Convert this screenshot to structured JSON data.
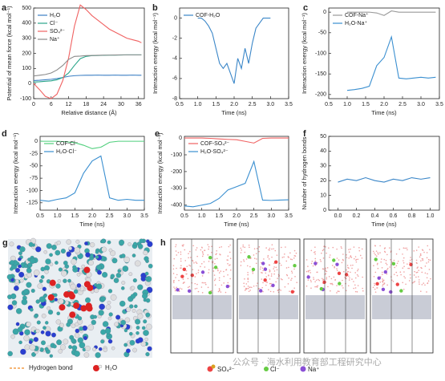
{
  "chart_data": [
    {
      "type": "line",
      "panel": "a",
      "xlabel": "Relative distance (Å)",
      "ylabel": "Potential of mean force (kcal mol⁻¹)",
      "x": [
        0,
        2,
        4,
        6,
        8,
        10,
        12,
        14,
        16,
        18,
        20,
        22,
        24,
        26,
        28,
        30,
        32,
        34,
        36,
        37
      ],
      "xlim": [
        0,
        38
      ],
      "xticks": [
        0,
        6,
        12,
        18,
        24,
        30,
        36
      ],
      "ylim": [
        -100,
        500
      ],
      "yticks": [
        -100,
        0,
        100,
        200,
        300,
        400,
        500
      ],
      "legend": "upper left",
      "series": [
        {
          "name": "H₂O",
          "color": "#3b7fc4",
          "values": [
            20,
            22,
            25,
            28,
            33,
            40,
            48,
            52,
            54,
            55,
            55,
            56,
            55,
            55,
            56,
            55,
            55,
            56,
            55,
            55
          ]
        },
        {
          "name": "Cl⁻",
          "color": "#2aa58a",
          "values": [
            10,
            12,
            15,
            18,
            25,
            40,
            70,
            120,
            165,
            180,
            185,
            186,
            187,
            188,
            188,
            189,
            190,
            190,
            190,
            190
          ]
        },
        {
          "name": "SO₄²⁻",
          "color": "#f06262",
          "values": [
            0,
            -40,
            -85,
            -100,
            -70,
            20,
            170,
            380,
            520,
            490,
            450,
            420,
            390,
            360,
            340,
            320,
            300,
            290,
            280,
            270
          ]
        },
        {
          "name": "Na⁺",
          "color": "#8a8a8a",
          "values": [
            50,
            55,
            60,
            70,
            90,
            120,
            160,
            180,
            182,
            185,
            186,
            187,
            188,
            188,
            189,
            190,
            190,
            190,
            190,
            190
          ]
        }
      ]
    },
    {
      "type": "line",
      "panel": "b",
      "xlabel": "Time (ns)",
      "ylabel": "Interaction energy (kcal mol⁻¹)",
      "x": [
        1.0,
        1.1,
        1.2,
        1.3,
        1.4,
        1.5,
        1.6,
        1.7,
        1.8,
        1.9,
        2.0,
        2.1,
        2.2,
        2.3,
        2.4,
        2.5,
        2.6,
        2.7,
        2.8,
        2.9,
        3.0
      ],
      "xlim": [
        0.5,
        3.5
      ],
      "xticks": [
        0.5,
        {
          "value": 1,
          "label": "1.0"
        },
        1.5,
        {
          "value": 2,
          "label": "2.0"
        },
        2.5,
        {
          "value": 3,
          "label": "3.0"
        },
        3.5
      ],
      "ylim": [
        -8,
        1
      ],
      "yticks": [
        0,
        -2,
        -4,
        -6,
        -8
      ],
      "legend": "upper left",
      "series": [
        {
          "name": "COF-H₂O",
          "color": "#3a86c8",
          "values": [
            0,
            0,
            -0.3,
            -0.8,
            -1.5,
            -3,
            -4.5,
            -5,
            -4.5,
            -5.5,
            -6.5,
            -4,
            -5,
            -3,
            -4.5,
            -2.5,
            -1,
            -0.5,
            0,
            0,
            0
          ]
        }
      ]
    },
    {
      "type": "line",
      "panel": "c",
      "xlabel": "Time (ns)",
      "ylabel": "Interaction energy (kcal mol⁻¹)",
      "x": [
        1.0,
        1.2,
        1.4,
        1.6,
        1.8,
        2.0,
        2.2,
        2.4,
        2.6,
        2.8,
        3.0,
        3.2,
        3.4
      ],
      "xlim": [
        0.5,
        3.5
      ],
      "xticks": [
        0.5,
        {
          "value": 1,
          "label": "1.0"
        },
        1.5,
        {
          "value": 2,
          "label": "2.0"
        },
        2.5,
        {
          "value": 3,
          "label": "3.0"
        },
        3.5
      ],
      "ylim": [
        -210,
        10
      ],
      "yticks": [
        0,
        -50,
        -100,
        -150,
        -200
      ],
      "legend": "upper left",
      "series": [
        {
          "name": "COF-Na⁺",
          "color": "#9a9a9a",
          "values": [
            0,
            0,
            0,
            0,
            -2,
            -8,
            3,
            0,
            0,
            0,
            0,
            0,
            0
          ]
        },
        {
          "name": "H₂O-Na⁺",
          "color": "#3a8fd0",
          "values": [
            -190,
            -188,
            -185,
            -180,
            -130,
            -110,
            -60,
            -160,
            -162,
            -160,
            -158,
            -160,
            -158
          ]
        }
      ]
    },
    {
      "type": "line",
      "panel": "d",
      "xlabel": "Time (ns)",
      "ylabel": "Interaction energy (kcal mol⁻¹)",
      "x": [
        0.5,
        0.75,
        1,
        1.25,
        1.5,
        1.75,
        2,
        2.25,
        2.5,
        2.75,
        3,
        3.25,
        3.5
      ],
      "xlim": [
        0.5,
        3.5
      ],
      "xticks": [
        0.5,
        {
          "value": 1,
          "label": "1.0"
        },
        1.5,
        {
          "value": 2,
          "label": "2.0"
        },
        2.5,
        {
          "value": 3,
          "label": "3.0"
        },
        3.5
      ],
      "ylim": [
        -140,
        10
      ],
      "yticks": [
        0,
        -25,
        -50,
        -75,
        -100,
        -125
      ],
      "legend": "upper left",
      "series": [
        {
          "name": "COF-Cl⁻",
          "color": "#4fcf7c",
          "values": [
            0,
            0,
            0,
            -1,
            -3,
            -8,
            -15,
            -12,
            -2,
            0,
            0,
            0,
            0
          ]
        },
        {
          "name": "H₂O-Cl⁻",
          "color": "#3a8fd0",
          "values": [
            -120,
            -122,
            -118,
            -115,
            -105,
            -65,
            -40,
            -30,
            -115,
            -120,
            -118,
            -120,
            -120
          ]
        }
      ]
    },
    {
      "type": "line",
      "panel": "e",
      "xlabel": "Time (ns)",
      "ylabel": "Interaction energy (kcal mol⁻¹)",
      "x": [
        0.5,
        0.75,
        1,
        1.25,
        1.5,
        1.75,
        2,
        2.25,
        2.5,
        2.75,
        3,
        3.25,
        3.5
      ],
      "xlim": [
        0.5,
        3.5
      ],
      "xticks": [
        0.5,
        {
          "value": 1,
          "label": "1.0"
        },
        1.5,
        {
          "value": 2,
          "label": "2.0"
        },
        2.5,
        {
          "value": 3,
          "label": "3.0"
        },
        3.5
      ],
      "ylim": [
        -430,
        10
      ],
      "yticks": [
        0,
        -100,
        -200,
        -300,
        -400
      ],
      "legend": "upper left",
      "series": [
        {
          "name": "COF-SO₄²⁻",
          "color": "#f06262",
          "values": [
            0,
            0,
            0,
            -2,
            -5,
            -8,
            -10,
            -20,
            -30,
            -2,
            0,
            0,
            0
          ]
        },
        {
          "name": "H₂O-SO₄²⁻",
          "color": "#3a8fd0",
          "values": [
            -405,
            -410,
            -400,
            -390,
            -360,
            -310,
            -290,
            -270,
            -140,
            -370,
            -372,
            -370,
            -368
          ]
        }
      ]
    },
    {
      "type": "line",
      "panel": "f",
      "xlabel": "Time (ns)",
      "ylabel": "Number of hydrogen bonds",
      "x": [
        0,
        0.1,
        0.2,
        0.3,
        0.4,
        0.5,
        0.6,
        0.7,
        0.8,
        0.9,
        1.0
      ],
      "xlim": [
        -0.1,
        1.1
      ],
      "xticks": [
        {
          "value": 0,
          "label": "0.0"
        },
        0.2,
        0.4,
        0.6,
        0.8,
        {
          "value": 1,
          "label": "1.0"
        }
      ],
      "ylim": [
        0,
        50
      ],
      "yticks": [
        0,
        10,
        20,
        30,
        40,
        50
      ],
      "series": [
        {
          "color": "#3a86c8",
          "values": [
            19,
            21,
            20,
            22,
            20,
            19,
            21,
            20,
            22,
            21,
            22
          ]
        }
      ]
    }
  ],
  "figure": {
    "panel_g": "g",
    "panel_h": "h",
    "g_legend": [
      "Hydrogen bond",
      "H₂O"
    ],
    "h_legend": [
      "SO₄²⁻",
      "Cl⁻",
      "Na⁺"
    ],
    "watermark": "公众号 · 海水利用教育部工程研究中心"
  }
}
